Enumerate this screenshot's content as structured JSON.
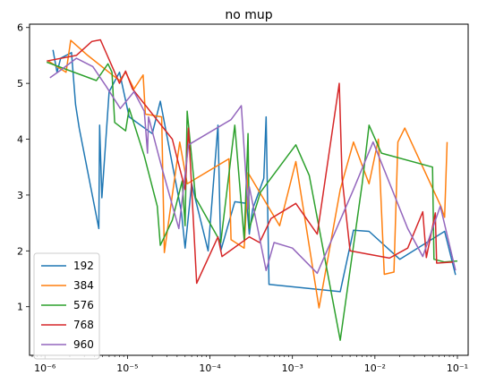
{
  "chart_data": {
    "type": "line",
    "title": "no mup",
    "xlabel": "",
    "ylabel": "",
    "x_scale": "log",
    "xlim": [
      6.5e-07,
      0.135
    ],
    "ylim": [
      0.13,
      6.06
    ],
    "grid": false,
    "legend_position": "lower-left",
    "x_ticks": [
      {
        "value": 1e-06,
        "label": "10⁻⁶"
      },
      {
        "value": 1e-05,
        "label": "10⁻⁵"
      },
      {
        "value": 0.0001,
        "label": "10⁻⁴"
      },
      {
        "value": 0.001,
        "label": "10⁻³"
      },
      {
        "value": 0.01,
        "label": "10⁻²"
      },
      {
        "value": 0.1,
        "label": "10⁻¹"
      }
    ],
    "y_ticks": [
      1,
      2,
      3,
      4,
      5,
      6
    ],
    "series": [
      {
        "name": "192",
        "color": "#1f77b4",
        "points": [
          [
            1.25e-06,
            5.6
          ],
          [
            1.4e-06,
            5.2
          ],
          [
            1.55e-06,
            5.45
          ],
          [
            2.1e-06,
            5.55
          ],
          [
            2.35e-06,
            4.62
          ],
          [
            2.6e-06,
            4.2
          ],
          [
            4.5e-06,
            2.4
          ],
          [
            4.6e-06,
            4.25
          ],
          [
            4.9e-06,
            2.95
          ],
          [
            6e-06,
            4.85
          ],
          [
            8e-06,
            5.2
          ],
          [
            1.05e-05,
            4.4
          ],
          [
            2e-05,
            4.1
          ],
          [
            2.5e-05,
            4.68
          ],
          [
            4.5e-05,
            2.7
          ],
          [
            5e-05,
            2.05
          ],
          [
            6e-05,
            3.2
          ],
          [
            9.5e-05,
            2.0
          ],
          [
            0.000125,
            4.25
          ],
          [
            0.000135,
            2.0
          ],
          [
            0.0002,
            2.88
          ],
          [
            0.00028,
            2.85
          ],
          [
            0.0003,
            2.3
          ],
          [
            0.00033,
            2.75
          ],
          [
            0.00045,
            3.3
          ],
          [
            0.00048,
            4.4
          ],
          [
            0.00052,
            1.4
          ],
          [
            0.0038,
            1.27
          ],
          [
            0.0055,
            2.37
          ],
          [
            0.0085,
            2.35
          ],
          [
            0.02,
            1.85
          ],
          [
            0.07,
            2.35
          ],
          [
            0.095,
            1.57
          ]
        ]
      },
      {
        "name": "384",
        "color": "#ff7f0e",
        "points": [
          [
            1.1e-06,
            5.4
          ],
          [
            1.8e-06,
            5.2
          ],
          [
            2.05e-06,
            5.77
          ],
          [
            3.3e-06,
            5.5
          ],
          [
            8e-06,
            5.05
          ],
          [
            9.5e-06,
            5.2
          ],
          [
            1.2e-05,
            4.9
          ],
          [
            1.55e-05,
            5.15
          ],
          [
            1.65e-05,
            4.45
          ],
          [
            2.6e-05,
            4.4
          ],
          [
            2.8e-05,
            1.97
          ],
          [
            3.5e-05,
            3.0
          ],
          [
            4.3e-05,
            3.95
          ],
          [
            5.3e-05,
            3.2
          ],
          [
            0.00017,
            3.65
          ],
          [
            0.00018,
            2.2
          ],
          [
            0.00026,
            2.05
          ],
          [
            0.00029,
            3.4
          ],
          [
            0.0007,
            2.45
          ],
          [
            0.0011,
            3.6
          ],
          [
            0.0021,
            0.98
          ],
          [
            0.0038,
            3.1
          ],
          [
            0.0055,
            3.95
          ],
          [
            0.0085,
            3.2
          ],
          [
            0.011,
            4.0
          ],
          [
            0.013,
            1.58
          ],
          [
            0.017,
            1.62
          ],
          [
            0.019,
            3.95
          ],
          [
            0.023,
            4.2
          ],
          [
            0.063,
            2.8
          ],
          [
            0.07,
            2.6
          ],
          [
            0.075,
            3.95
          ]
        ]
      },
      {
        "name": "576",
        "color": "#2ca02c",
        "points": [
          [
            1.05e-06,
            5.38
          ],
          [
            4.2e-06,
            5.05
          ],
          [
            5.8e-06,
            5.35
          ],
          [
            6.5e-06,
            5.2
          ],
          [
            7e-06,
            4.3
          ],
          [
            9.5e-06,
            4.15
          ],
          [
            1.05e-05,
            4.55
          ],
          [
            1.6e-05,
            3.7
          ],
          [
            2.3e-05,
            2.8
          ],
          [
            2.5e-05,
            2.1
          ],
          [
            3.5e-05,
            2.55
          ],
          [
            4.6e-05,
            3.25
          ],
          [
            5e-05,
            2.45
          ],
          [
            5.3e-05,
            4.5
          ],
          [
            6.7e-05,
            2.95
          ],
          [
            0.000135,
            2.15
          ],
          [
            0.0002,
            4.25
          ],
          [
            0.00026,
            2.2
          ],
          [
            0.00029,
            4.1
          ],
          [
            0.0003,
            2.4
          ],
          [
            0.00041,
            3.05
          ],
          [
            0.0011,
            3.9
          ],
          [
            0.0016,
            3.35
          ],
          [
            0.0038,
            0.4
          ],
          [
            0.007,
            3.2
          ],
          [
            0.0085,
            4.25
          ],
          [
            0.012,
            3.75
          ],
          [
            0.05,
            3.5
          ],
          [
            0.052,
            1.85
          ],
          [
            0.07,
            1.8
          ],
          [
            0.1,
            1.82
          ]
        ]
      },
      {
        "name": "768",
        "color": "#d62728",
        "points": [
          [
            1.05e-06,
            5.4
          ],
          [
            2.4e-06,
            5.5
          ],
          [
            3.7e-06,
            5.75
          ],
          [
            4.7e-06,
            5.78
          ],
          [
            8e-06,
            5.0
          ],
          [
            9.5e-06,
            5.22
          ],
          [
            1.15e-05,
            4.9
          ],
          [
            3.5e-05,
            4.0
          ],
          [
            5e-05,
            3.1
          ],
          [
            5.5e-05,
            4.2
          ],
          [
            6.9e-05,
            1.42
          ],
          [
            0.000125,
            2.25
          ],
          [
            0.00014,
            1.9
          ],
          [
            0.0003,
            2.25
          ],
          [
            0.0004,
            2.15
          ],
          [
            0.00055,
            2.58
          ],
          [
            0.0011,
            2.85
          ],
          [
            0.002,
            2.3
          ],
          [
            0.0037,
            5.0
          ],
          [
            0.004,
            3.3
          ],
          [
            0.005,
            2.0
          ],
          [
            0.015,
            1.87
          ],
          [
            0.025,
            2.05
          ],
          [
            0.038,
            2.7
          ],
          [
            0.042,
            1.88
          ],
          [
            0.054,
            2.68
          ],
          [
            0.056,
            1.78
          ],
          [
            0.09,
            1.8
          ]
        ]
      },
      {
        "name": "960",
        "color": "#9467bd",
        "points": [
          [
            1.15e-06,
            5.1
          ],
          [
            1.6e-06,
            5.25
          ],
          [
            2.4e-06,
            5.45
          ],
          [
            3.8e-06,
            5.3
          ],
          [
            5.5e-06,
            4.95
          ],
          [
            8.2e-06,
            4.55
          ],
          [
            1.2e-05,
            4.85
          ],
          [
            1.6e-05,
            4.5
          ],
          [
            1.75e-05,
            3.75
          ],
          [
            1.8e-05,
            4.4
          ],
          [
            2.6e-05,
            3.5
          ],
          [
            4.2e-05,
            2.4
          ],
          [
            5.5e-05,
            3.9
          ],
          [
            0.00018,
            4.35
          ],
          [
            0.00024,
            4.6
          ],
          [
            0.00029,
            2.75
          ],
          [
            0.0003,
            3.15
          ],
          [
            0.00048,
            1.65
          ],
          [
            0.0006,
            2.15
          ],
          [
            0.001,
            2.05
          ],
          [
            0.002,
            1.6
          ],
          [
            0.0055,
            3.1
          ],
          [
            0.0095,
            3.95
          ],
          [
            0.025,
            2.4
          ],
          [
            0.038,
            1.9
          ],
          [
            0.062,
            2.8
          ],
          [
            0.095,
            1.65
          ]
        ]
      }
    ]
  }
}
